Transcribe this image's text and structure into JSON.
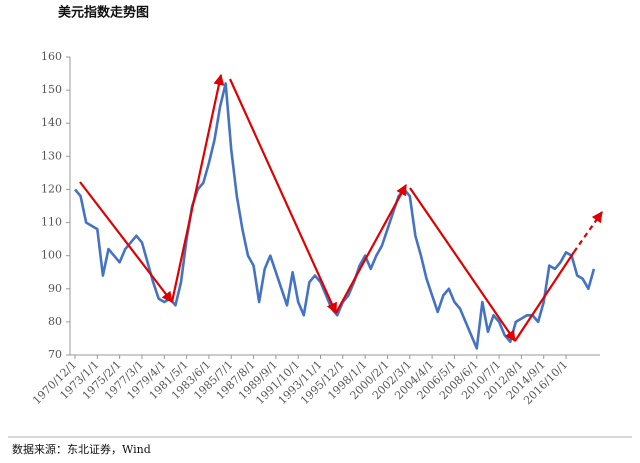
{
  "title": "美元指数走势图",
  "source": "数据来源：东北证券，Wind",
  "chart_data": {
    "type": "line",
    "categories": [
      "1970/12/1",
      null,
      null,
      null,
      "1973/1/1",
      null,
      null,
      null,
      "1975/2/1",
      null,
      null,
      null,
      "1977/3/1",
      null,
      null,
      null,
      "1979/4/1",
      null,
      null,
      null,
      "1981/5/1",
      null,
      null,
      null,
      "1983/6/1",
      null,
      null,
      null,
      "1985/7/1",
      null,
      null,
      null,
      "1987/8/1",
      null,
      null,
      null,
      "1989/9/1",
      null,
      null,
      null,
      "1991/10/1",
      null,
      null,
      null,
      "1993/11/1",
      null,
      null,
      null,
      "1995/12/1",
      null,
      null,
      null,
      "1998/1/1",
      null,
      null,
      null,
      "2000/2/1",
      null,
      null,
      null,
      "2002/3/1",
      null,
      null,
      null,
      "2004/4/1",
      null,
      null,
      null,
      "2006/5/1",
      null,
      null,
      null,
      "2008/6/1",
      null,
      null,
      null,
      "2010/7/1",
      null,
      null,
      null,
      "2012/8/1",
      null,
      null,
      null,
      "2014/9/1",
      null,
      null,
      null,
      "2016/10/1",
      null,
      null,
      null,
      null,
      null
    ],
    "series": [
      {
        "color": "#4472c4",
        "values": [
          120,
          118,
          110,
          109,
          108,
          94,
          102,
          100,
          98,
          102,
          104,
          106,
          104,
          98,
          92,
          87,
          86,
          87,
          85,
          92,
          105,
          115,
          120,
          122,
          128,
          135,
          145,
          152,
          132,
          118,
          108,
          100,
          97,
          86,
          96,
          100,
          95,
          90,
          85,
          95,
          86,
          82,
          92,
          94,
          92,
          88,
          84,
          82,
          86,
          88,
          92,
          97,
          100,
          96,
          100,
          103,
          108,
          113,
          118,
          120,
          118,
          106,
          100,
          93,
          88,
          83,
          88,
          90,
          86,
          84,
          80,
          76,
          72,
          86,
          77,
          82,
          80,
          76,
          74,
          80,
          81,
          82,
          82,
          80,
          86,
          97,
          96,
          98,
          101,
          100,
          94,
          93,
          90,
          96
        ]
      }
    ],
    "ylim": [
      70,
      160
    ],
    "yticks": [
      70,
      80,
      90,
      100,
      110,
      120,
      130,
      140,
      150,
      160
    ]
  }
}
